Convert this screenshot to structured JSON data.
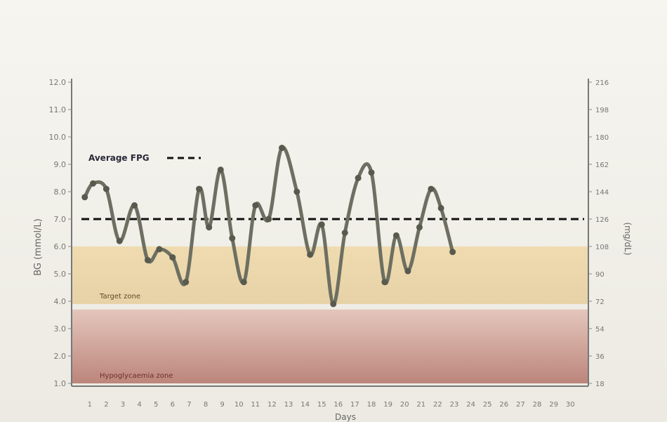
{
  "chart_data": {
    "type": "line",
    "ylabel": "BG (mmol/L)",
    "ylabel_right": "(mg/dL)",
    "xlabel": "Days",
    "y_ticks": [
      "12.0",
      "11.0",
      "10.0",
      "9.0",
      "8.0",
      "7.0",
      "6.0",
      "5.0",
      "4.0",
      "3.0",
      "2.0",
      "1.0"
    ],
    "y_right_ticks": [
      "216",
      "198",
      "180",
      "162",
      "144",
      "126",
      "108",
      "90",
      "72",
      "54",
      "36",
      "18"
    ],
    "ylim": [
      1.0,
      12.0
    ],
    "x_ticks": [
      "1",
      "2",
      "3",
      "4",
      "5",
      "6",
      "7",
      "8",
      "9",
      "10",
      "11",
      "12",
      "13",
      "14",
      "15",
      "16",
      "17",
      "18",
      "19",
      "20",
      "21",
      "22",
      "23",
      "24",
      "25",
      "26",
      "27",
      "28",
      "29",
      "30"
    ],
    "xlim": [
      0.5,
      30.5
    ],
    "series": [
      {
        "name": "",
        "x": [
          0.7,
          1.2,
          2.0,
          2.8,
          3.7,
          4.5,
          5.2,
          6.0,
          6.8,
          7.6,
          8.2,
          8.9,
          9.6,
          10.3,
          11.0,
          11.8,
          12.6,
          13.5,
          14.3,
          15.0,
          15.7,
          16.4,
          17.2,
          18.0,
          18.8,
          19.5,
          20.2,
          20.9,
          21.6,
          22.2,
          22.9,
          23.6,
          24.4,
          25.1,
          25.8,
          26.6,
          27.4,
          28.1,
          28.9,
          29.7
        ],
        "y": [
          7.8,
          8.3,
          8.1,
          6.2,
          7.5,
          5.5,
          5.9,
          5.6,
          4.7,
          8.1,
          6.7,
          8.8,
          6.3,
          4.7,
          7.5,
          7.0,
          9.6,
          8.0,
          5.7,
          6.8,
          3.9,
          6.5,
          8.5,
          8.7,
          4.7,
          6.4,
          5.1,
          6.7,
          8.1,
          7.4,
          5.8,
          7.0,
          7.0,
          7.0,
          7.0,
          7.0,
          7.0,
          7.0,
          7.0,
          7.0
        ],
        "color": "#6d6f62"
      }
    ],
    "average_line": {
      "label": "Average FPG",
      "value": 7.0,
      "style": "dashed",
      "color": "#111111"
    },
    "zones": [
      {
        "label": "Target zone",
        "from": 3.9,
        "to": 6.0,
        "color": "#ead6a6"
      },
      {
        "label": "Hypoglycaemia zone",
        "from": 1.0,
        "to": 3.7,
        "color": "#c98d80"
      }
    ],
    "grid": false,
    "legend_position": "top-left"
  }
}
